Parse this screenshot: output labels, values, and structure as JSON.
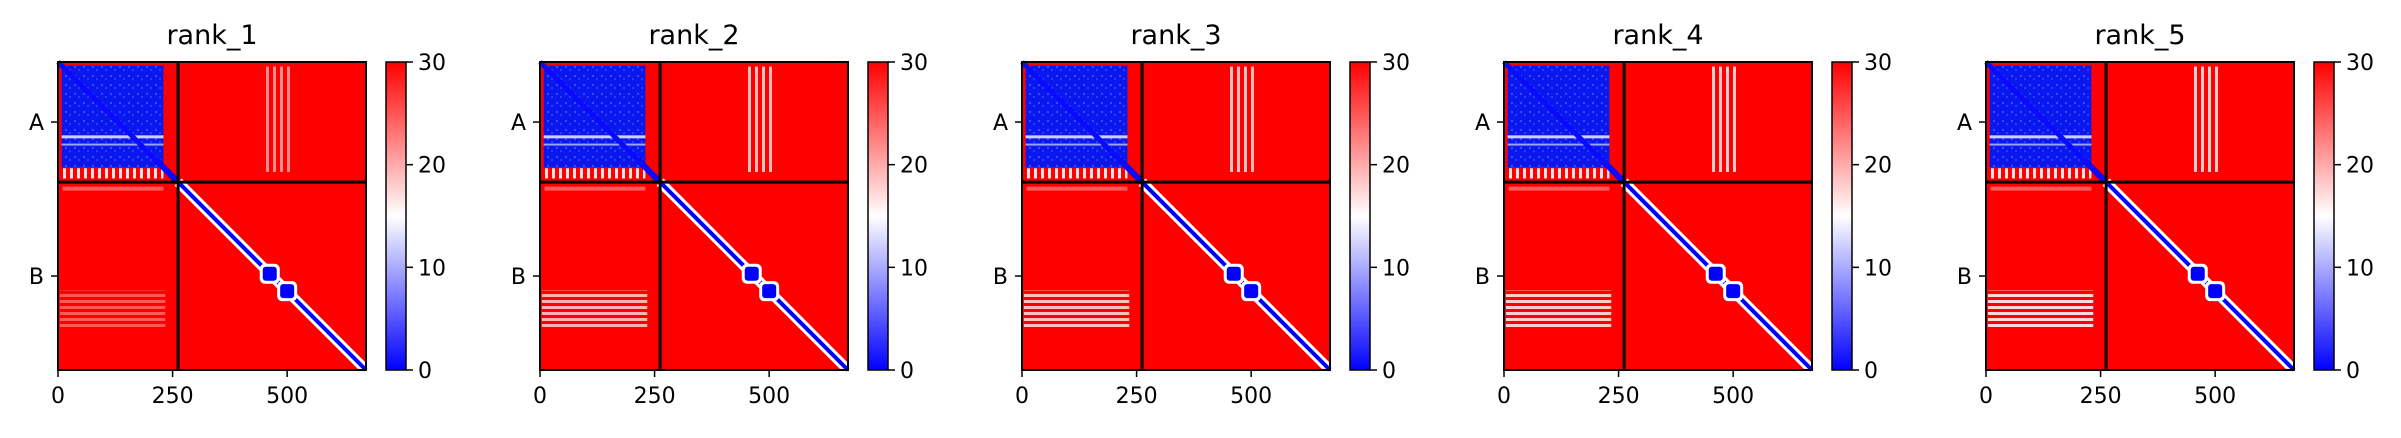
{
  "chart_data": [
    {
      "type": "heatmap",
      "title": "rank_1",
      "x_ticks": [
        0,
        250,
        500
      ],
      "x_range": [
        0,
        672
      ],
      "y_ticks": [
        "A",
        "B"
      ],
      "chain_boundary": 262,
      "colorbar": {
        "min": 0,
        "max": 30,
        "ticks": [
          0,
          10,
          20,
          30
        ],
        "colors": [
          "#0000ff",
          "#ffffff",
          "#ff0000"
        ]
      },
      "off_diagonal": {
        "AB_stripe": [
          [
            450,
            510
          ],
          0.55
        ],
        "BA_stripe": [
          [
            0,
            230
          ],
          0.35
        ],
        "BA_band_fraction": 0.68
      }
    },
    {
      "type": "heatmap",
      "title": "rank_2",
      "x_ticks": [
        0,
        250,
        500
      ],
      "x_range": [
        0,
        672
      ],
      "y_ticks": [
        "A",
        "B"
      ],
      "chain_boundary": 262,
      "colorbar": {
        "min": 0,
        "max": 30,
        "ticks": [
          0,
          10,
          20,
          30
        ],
        "colors": [
          "#0000ff",
          "#ffffff",
          "#ff0000"
        ]
      },
      "off_diagonal": {
        "AB_stripe": [
          [
            450,
            510
          ],
          0.75
        ],
        "BA_stripe": [
          [
            0,
            230
          ],
          0.7
        ],
        "BA_band_fraction": 0.68
      }
    },
    {
      "type": "heatmap",
      "title": "rank_3",
      "x_ticks": [
        0,
        250,
        500
      ],
      "x_range": [
        0,
        672
      ],
      "y_ticks": [
        "A",
        "B"
      ],
      "chain_boundary": 262,
      "colorbar": {
        "min": 0,
        "max": 30,
        "ticks": [
          0,
          10,
          20,
          30
        ],
        "colors": [
          "#0000ff",
          "#ffffff",
          "#ff0000"
        ]
      },
      "off_diagonal": {
        "AB_stripe": [
          [
            450,
            510
          ],
          0.75
        ],
        "BA_stripe": [
          [
            0,
            230
          ],
          0.75
        ],
        "BA_band_fraction": 0.68
      }
    },
    {
      "type": "heatmap",
      "title": "rank_4",
      "x_ticks": [
        0,
        250,
        500
      ],
      "x_range": [
        0,
        672
      ],
      "y_ticks": [
        "A",
        "B"
      ],
      "chain_boundary": 262,
      "colorbar": {
        "min": 0,
        "max": 30,
        "ticks": [
          0,
          10,
          20,
          30
        ],
        "colors": [
          "#0000ff",
          "#ffffff",
          "#ff0000"
        ]
      },
      "off_diagonal": {
        "AB_stripe": [
          [
            450,
            510
          ],
          0.8
        ],
        "BA_stripe": [
          [
            0,
            230
          ],
          0.8
        ],
        "BA_band_fraction": 0.68
      }
    },
    {
      "type": "heatmap",
      "title": "rank_5",
      "x_ticks": [
        0,
        250,
        500
      ],
      "x_range": [
        0,
        672
      ],
      "y_ticks": [
        "A",
        "B"
      ],
      "chain_boundary": 262,
      "colorbar": {
        "min": 0,
        "max": 30,
        "ticks": [
          0,
          10,
          20,
          30
        ],
        "colors": [
          "#0000ff",
          "#ffffff",
          "#ff0000"
        ]
      },
      "off_diagonal": {
        "AB_stripe": [
          [
            450,
            510
          ],
          0.8
        ],
        "BA_stripe": [
          [
            0,
            230
          ],
          0.85
        ],
        "BA_band_fraction": 0.68
      }
    }
  ]
}
